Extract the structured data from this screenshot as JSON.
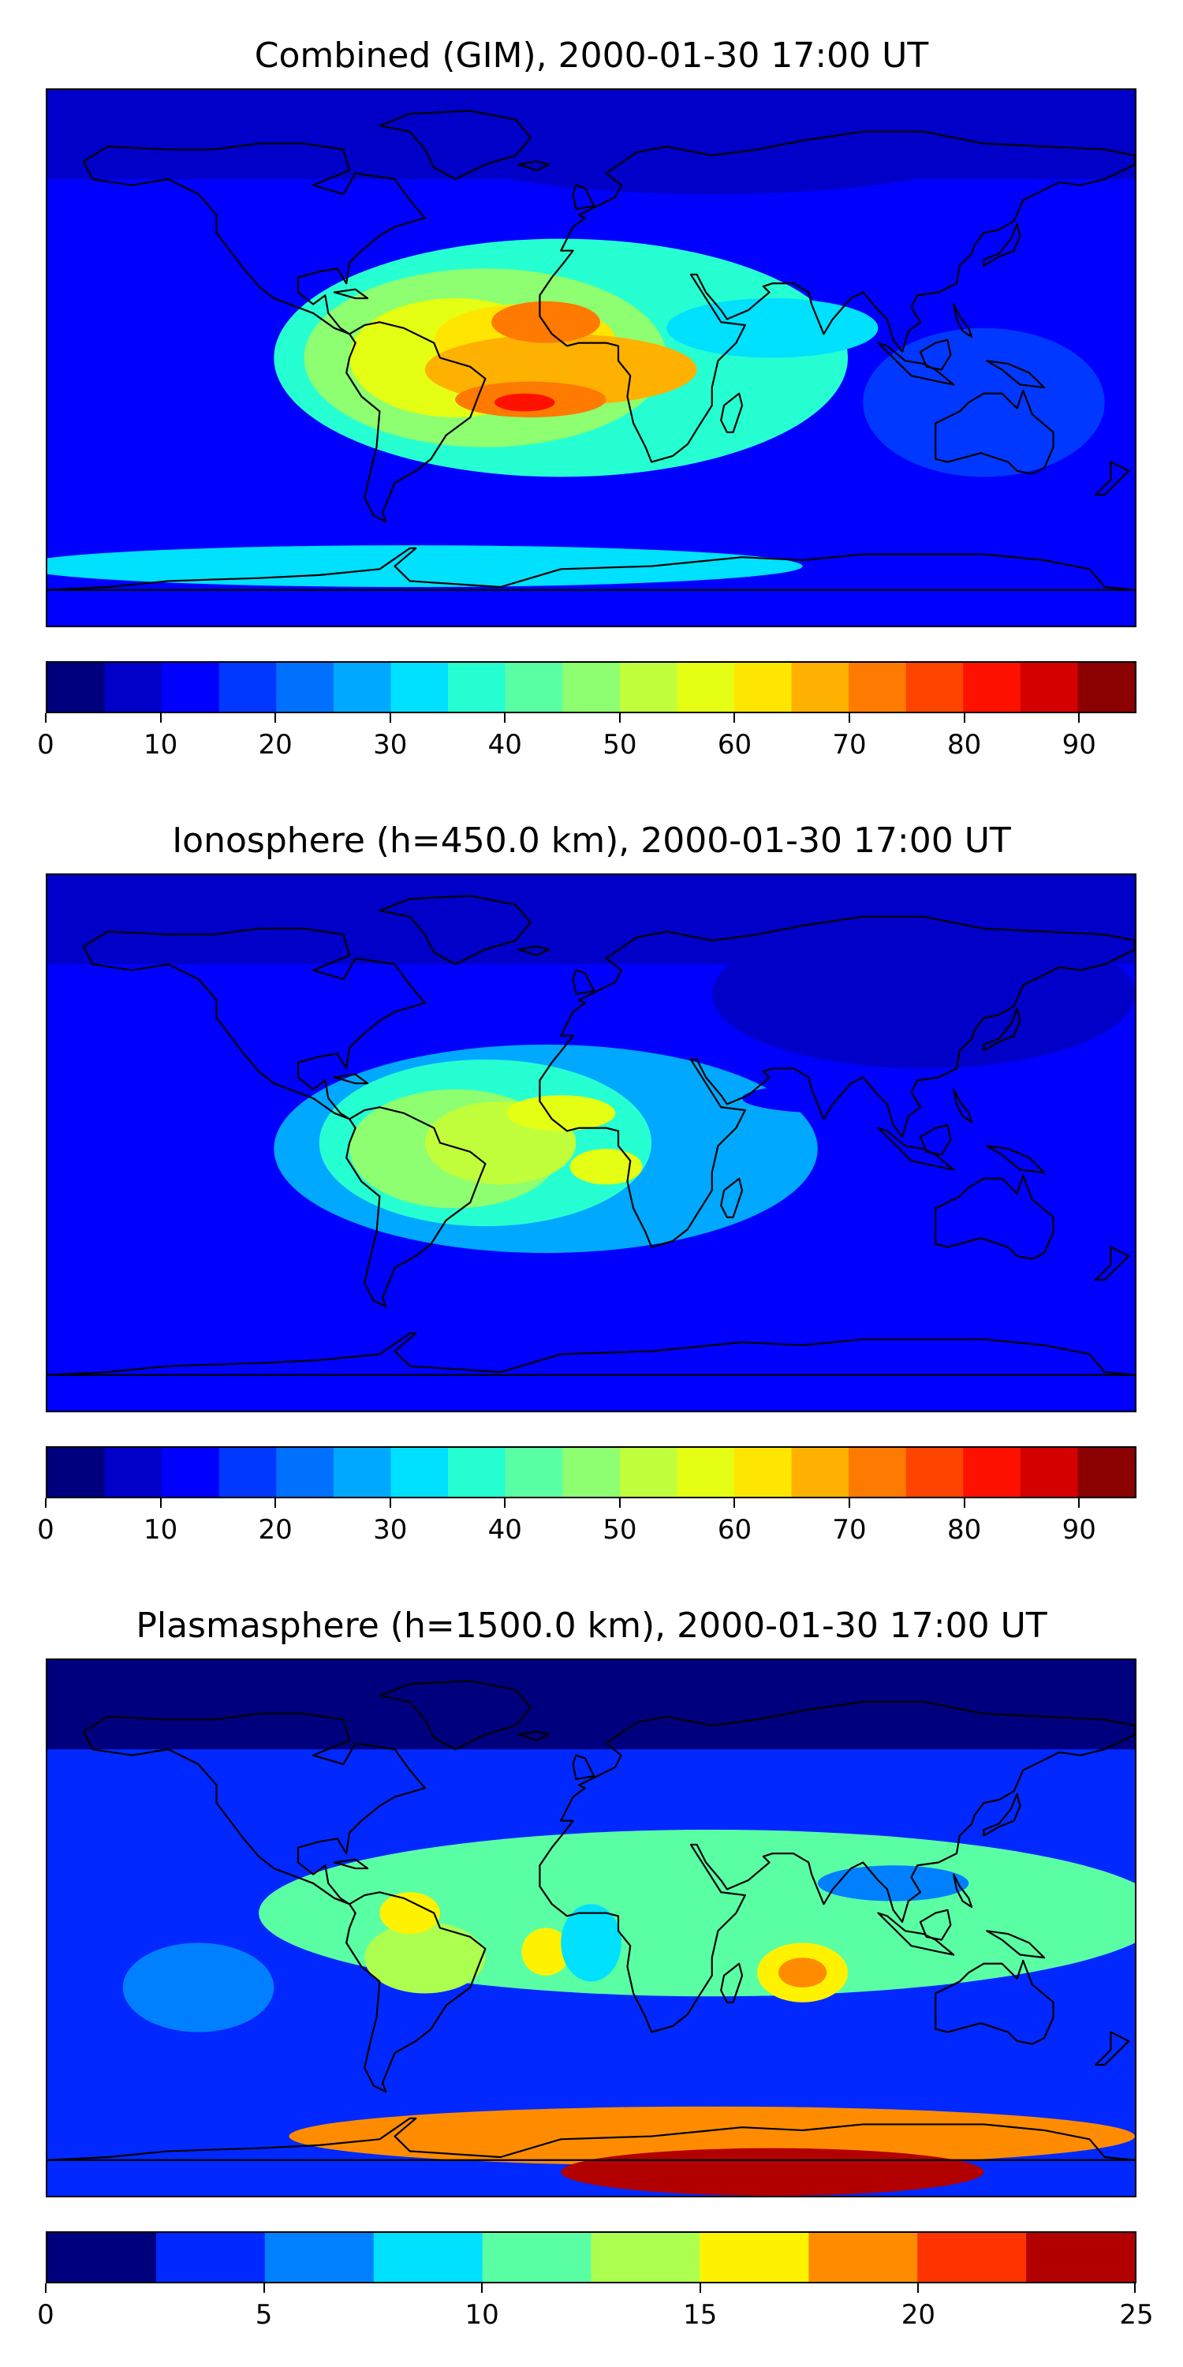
{
  "chart_data": [
    {
      "type": "heatmap",
      "title": "Combined (GIM), 2000-01-30 17:00 UT",
      "colorbar": {
        "levels": [
          0,
          5,
          10,
          15,
          20,
          25,
          30,
          35,
          40,
          45,
          50,
          55,
          60,
          65,
          70,
          75,
          80,
          85,
          90,
          95
        ],
        "ticks": [
          0,
          10,
          20,
          30,
          40,
          50,
          60,
          70,
          80,
          90
        ],
        "colors": [
          "#00007f",
          "#0000c8",
          "#0000ff",
          "#0038ff",
          "#0070ff",
          "#00a8ff",
          "#00e0ff",
          "#26ffd1",
          "#5affa4",
          "#8dff70",
          "#c1ff3d",
          "#e4ff13",
          "#ffe600",
          "#ffb100",
          "#ff7a00",
          "#ff4400",
          "#ff1100",
          "#d40000",
          "#8b0000"
        ]
      },
      "regions": [
        {
          "lon": -10,
          "lat": 0,
          "rlon": 95,
          "rlat": 40,
          "value": 37
        },
        {
          "lon": -35,
          "lat": 0,
          "rlon": 60,
          "rlat": 30,
          "value": 47
        },
        {
          "lon": -45,
          "lat": 0,
          "rlon": 35,
          "rlat": 20,
          "value": 58
        },
        {
          "lon": -22,
          "lat": 6,
          "rlon": 30,
          "rlat": 12,
          "value": 62
        },
        {
          "lon": -10,
          "lat": -4,
          "rlon": 45,
          "rlat": 12,
          "value": 65
        },
        {
          "lon": -15,
          "lat": 12,
          "rlon": 18,
          "rlat": 7,
          "value": 72
        },
        {
          "lon": -20,
          "lat": -14,
          "rlon": 25,
          "rlat": 6,
          "value": 72
        },
        {
          "lon": -22,
          "lat": -15,
          "rlon": 10,
          "rlat": 3,
          "value": 82
        },
        {
          "lon": 60,
          "lat": 10,
          "rlon": 35,
          "rlat": 10,
          "value": 32
        },
        {
          "lon": 130,
          "lat": -15,
          "rlon": 40,
          "rlat": 25,
          "value": 17
        },
        {
          "lon": -60,
          "lat": -70,
          "rlon": 130,
          "rlat": 7,
          "value": 32
        },
        {
          "lon": 40,
          "lat": 70,
          "rlon": 90,
          "rlat": 15,
          "value": 8
        }
      ]
    },
    {
      "type": "heatmap",
      "title": "Ionosphere  (h=450.0 km), 2000-01-30 17:00 UT",
      "colorbar": {
        "levels": [
          0,
          5,
          10,
          15,
          20,
          25,
          30,
          35,
          40,
          45,
          50,
          55,
          60,
          65,
          70,
          75,
          80,
          85,
          90,
          95
        ],
        "ticks": [
          0,
          10,
          20,
          30,
          40,
          50,
          60,
          70,
          80,
          90
        ],
        "colors": [
          "#00007f",
          "#0000c8",
          "#0000ff",
          "#0038ff",
          "#0070ff",
          "#00a8ff",
          "#00e0ff",
          "#26ffd1",
          "#5affa4",
          "#8dff70",
          "#c1ff3d",
          "#e4ff13",
          "#ffe600",
          "#ffb100",
          "#ff7a00",
          "#ff4400",
          "#ff1100",
          "#d40000",
          "#8b0000"
        ]
      },
      "regions": [
        {
          "lon": -15,
          "lat": -2,
          "rlon": 90,
          "rlat": 35,
          "value": 28
        },
        {
          "lon": -35,
          "lat": 0,
          "rlon": 55,
          "rlat": 28,
          "value": 38
        },
        {
          "lon": -45,
          "lat": -2,
          "rlon": 35,
          "rlat": 20,
          "value": 47
        },
        {
          "lon": -30,
          "lat": 0,
          "rlon": 25,
          "rlat": 14,
          "value": 52
        },
        {
          "lon": -10,
          "lat": 10,
          "rlon": 18,
          "rlat": 6,
          "value": 57
        },
        {
          "lon": 5,
          "lat": -8,
          "rlon": 12,
          "rlat": 6,
          "value": 57
        },
        {
          "lon": 110,
          "lat": 50,
          "rlon": 70,
          "rlat": 25,
          "value": 7
        },
        {
          "lon": 80,
          "lat": 15,
          "rlon": 30,
          "rlat": 5,
          "value": 12
        }
      ]
    },
    {
      "type": "heatmap",
      "title": "Plasmasphere (h=1500.0 km), 2000-01-30 17:00 UT",
      "colorbar": {
        "levels": [
          0,
          2.5,
          5,
          7.5,
          10,
          12.5,
          15,
          17.5,
          20,
          22.5,
          25
        ],
        "ticks": [
          0,
          5,
          10,
          15,
          20,
          25
        ],
        "colors": [
          "#00007f",
          "#0028ff",
          "#0080ff",
          "#00e0ff",
          "#5affa4",
          "#adff4f",
          "#fff200",
          "#ff8c00",
          "#ff3300",
          "#b20000"
        ]
      },
      "regions": [
        {
          "lon": 40,
          "lat": 5,
          "rlon": 150,
          "rlat": 28,
          "value": 11
        },
        {
          "lon": -130,
          "lat": -20,
          "rlon": 25,
          "rlat": 15,
          "value": 6
        },
        {
          "lon": -55,
          "lat": -10,
          "rlon": 20,
          "rlat": 12,
          "value": 14
        },
        {
          "lon": -60,
          "lat": 5,
          "rlon": 10,
          "rlat": 7,
          "value": 16
        },
        {
          "lon": -15,
          "lat": -8,
          "rlon": 8,
          "rlat": 8,
          "value": 16
        },
        {
          "lon": 70,
          "lat": -15,
          "rlon": 15,
          "rlat": 10,
          "value": 15
        },
        {
          "lon": 70,
          "lat": -15,
          "rlon": 8,
          "rlat": 5,
          "value": 18
        },
        {
          "lon": 0,
          "lat": -5,
          "rlon": 10,
          "rlat": 13,
          "value": 8
        },
        {
          "lon": 100,
          "lat": 15,
          "rlon": 25,
          "rlat": 6,
          "value": 6
        },
        {
          "lon": 40,
          "lat": -70,
          "rlon": 140,
          "rlat": 10,
          "value": 19
        },
        {
          "lon": 60,
          "lat": -82,
          "rlon": 70,
          "rlat": 8,
          "value": 23
        }
      ]
    }
  ]
}
